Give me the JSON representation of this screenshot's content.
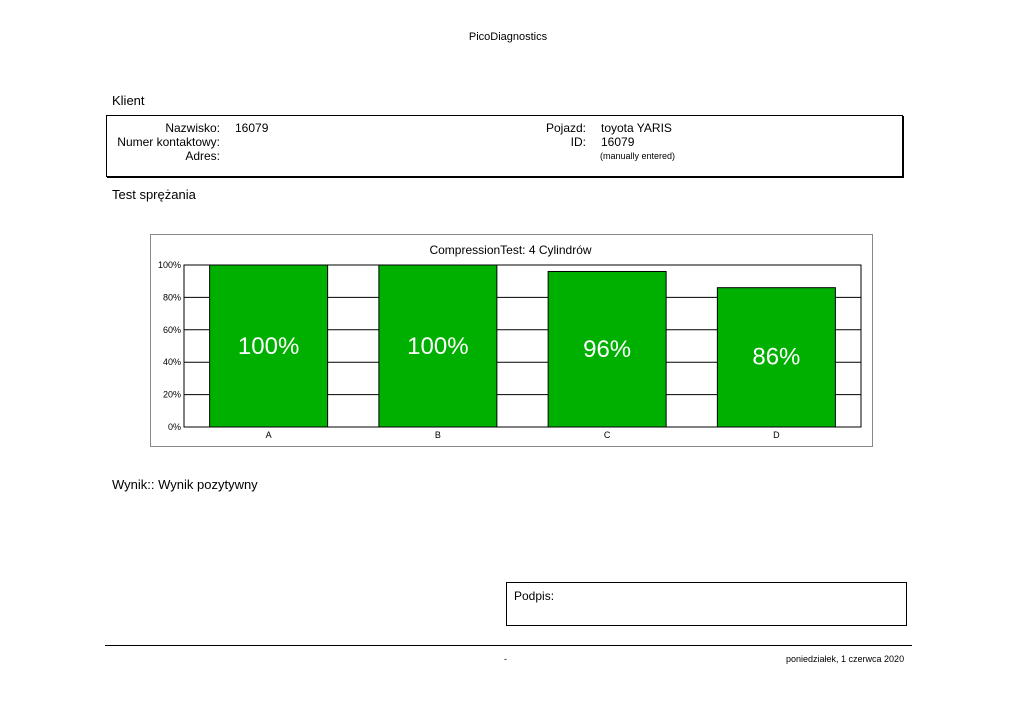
{
  "header": {
    "title": "PicoDiagnostics"
  },
  "client": {
    "heading": "Klient",
    "surname_label": "Nazwisko:",
    "surname_value": "16079",
    "contact_label": "Numer kontaktowy:",
    "contact_value": "",
    "address_label": "Adres:",
    "address_value": "",
    "vehicle_label": "Pojazd:",
    "vehicle_value": "toyota YARIS",
    "id_label": "ID:",
    "id_value": "16079",
    "id_note": "(manually entered)"
  },
  "test": {
    "heading": "Test sprężania"
  },
  "chart_data": {
    "type": "bar",
    "title": "CompressionTest: 4 Cylindrów",
    "categories": [
      "A",
      "B",
      "C",
      "D"
    ],
    "values": [
      100,
      100,
      96,
      86
    ],
    "data_labels": [
      "100%",
      "100%",
      "96%",
      "86%"
    ],
    "ylim": [
      0,
      100
    ],
    "yticks": [
      0,
      20,
      40,
      60,
      80,
      100
    ],
    "ytick_labels": [
      "0%",
      "20%",
      "40%",
      "60%",
      "80%",
      "100%"
    ],
    "xlabel": "",
    "ylabel": "",
    "grid": true,
    "bar_color": "#00b000",
    "label_color": "#ffffff"
  },
  "result": {
    "text": "Wynik:: Wynik pozytywny"
  },
  "signature": {
    "label": "Podpis:"
  },
  "footer": {
    "center_text": "-",
    "date": "poniedziałek, 1 czerwca 2020"
  }
}
